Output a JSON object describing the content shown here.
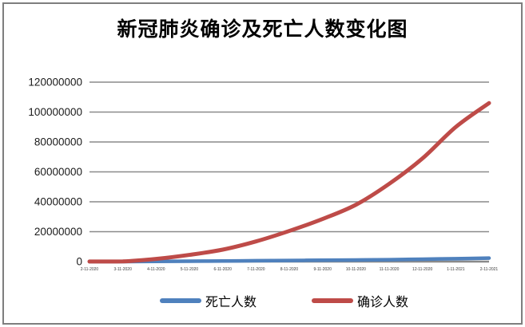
{
  "chart_data": {
    "type": "line",
    "title": "新冠肺炎确诊及死亡人数变化图",
    "categories": [
      "2-11-2020",
      "3-11-2020",
      "4-11-2020",
      "5-11-2020",
      "6-11-2020",
      "7-11-2020",
      "8-11-2020",
      "9-11-2020",
      "10-11-2020",
      "11-11-2020",
      "12-11-2020",
      "1-11-2021",
      "2-11-2021"
    ],
    "series": [
      {
        "name": "死亡人数",
        "slug": "deaths",
        "color": "#4F81BD",
        "stroke_width": 4.5,
        "values": [
          1100,
          4300,
          110000,
          290000,
          420000,
          580000,
          750000,
          920000,
          1080000,
          1280000,
          1610000,
          1950000,
          2350000
        ]
      },
      {
        "name": "确诊人数",
        "slug": "confirmed",
        "color": "#BE4B48",
        "stroke_width": 5,
        "values": [
          45000,
          120000,
          1800000,
          4500000,
          8000000,
          13500000,
          20500000,
          28500000,
          38000000,
          52000000,
          69000000,
          90000000,
          106000000
        ]
      }
    ],
    "xlabel": "",
    "ylabel": "",
    "ylim": [
      0,
      120000000
    ],
    "y_ticks": [
      0,
      20000000,
      40000000,
      60000000,
      80000000,
      100000000,
      120000000
    ],
    "grid": "horizontal-only",
    "legend_position": "bottom",
    "axis_color": "#8A8A8A",
    "grid_color": "#8A8A8A",
    "y_tick_label_color": "#1A1A1A",
    "x_tick_label_color": "#3A3A3A"
  }
}
